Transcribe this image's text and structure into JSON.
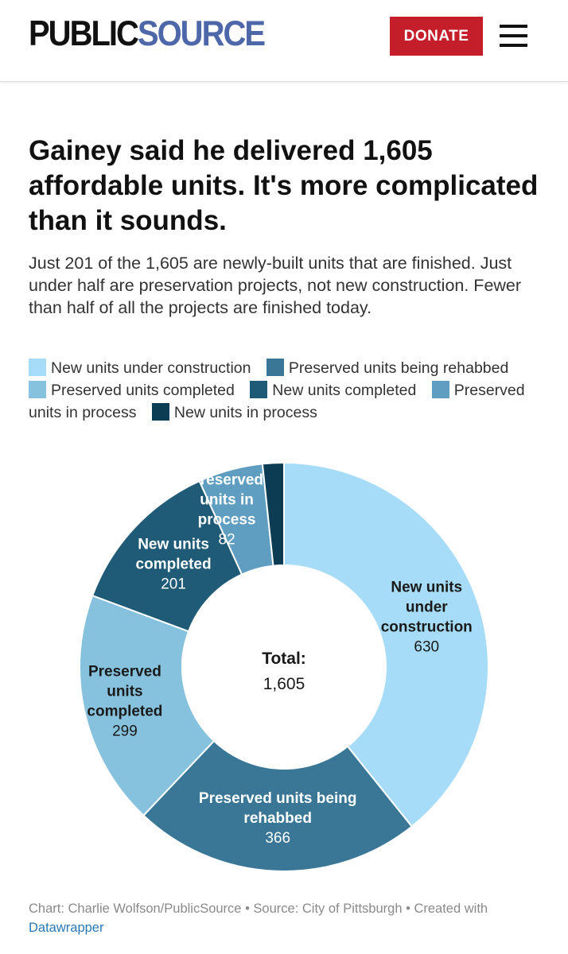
{
  "header": {
    "logo_public": "PUBLIC",
    "logo_source": "SOURCE",
    "donate_label": "DONATE",
    "menu_icon": "hamburger-menu-icon"
  },
  "article": {
    "headline": "Gainey said he delivered 1,605 affordable units. It's more complicated than it sounds.",
    "subtitle": "Just 201 of the 1,605 are newly-built units that are finished. Just under half are preservation projects, not new construction. Fewer than half of all the projects are finished today."
  },
  "chart_data": {
    "type": "pie",
    "variant": "donut",
    "title": "Gainey said he delivered 1,605 affordable units. It's more complicated than it sounds.",
    "center_label": "Total:",
    "center_value": "1,605",
    "legend_order": [
      "New units under construction",
      "Preserved units being rehabbed",
      "Preserved units completed",
      "New units completed",
      "Preserved units in process",
      "New units in process"
    ],
    "slices": [
      {
        "name": "New units under construction",
        "value": 630,
        "value_label": "630",
        "color": "#a6dcf7",
        "label_lines": [
          "New units",
          "under",
          "construction"
        ]
      },
      {
        "name": "Preserved units being rehabbed",
        "value": 366,
        "value_label": "366",
        "color": "#3a7796",
        "label_lines": [
          "Preserved units being",
          "rehabbed"
        ]
      },
      {
        "name": "Preserved units completed",
        "value": 299,
        "value_label": "299",
        "color": "#86c1dd",
        "label_lines": [
          "Preserved",
          "units",
          "completed"
        ]
      },
      {
        "name": "New units completed",
        "value": 201,
        "value_label": "201",
        "color": "#1f5a76",
        "label_lines": [
          "New units",
          "completed"
        ]
      },
      {
        "name": "Preserved units in process",
        "value": 82,
        "value_label": "82",
        "color": "#5f9ec0",
        "label_lines": [
          "Preserved",
          "units in",
          "process"
        ]
      },
      {
        "name": "New units in process",
        "value": 27,
        "value_label": "",
        "color": "#0b3c54",
        "label_lines": []
      }
    ]
  },
  "footer": {
    "credit": "Chart: Charlie Wolfson/PublicSource • Source: City of Pittsburgh • Created with",
    "tool_link": "Datawrapper"
  }
}
